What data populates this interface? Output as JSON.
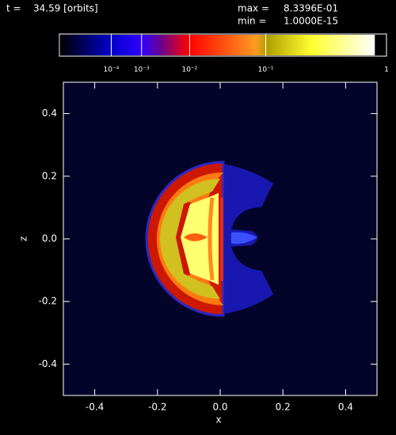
{
  "chart_data": {
    "type": "heatmap",
    "time_label": "t =",
    "time": "34.59 [orbits]",
    "max_label": "max =",
    "max": {
      "value": 0.83396,
      "label": "8.3396E-01"
    },
    "min_label": "min =",
    "min": {
      "value": 1e-15,
      "label": "1.0000E-15"
    },
    "color_scale": "power",
    "color_exponent": 0.2,
    "clim": [
      0,
      1
    ],
    "cticks": [
      {
        "value": 0.0001,
        "label": "10⁻⁴"
      },
      {
        "value": 0.001,
        "label": "10⁻³"
      },
      {
        "value": 0.01,
        "label": "10⁻²"
      },
      {
        "value": 0.1,
        "label": "10⁻¹"
      },
      1
    ],
    "x_label": "x",
    "y_label": "z",
    "xlim": [
      -0.5,
      0.5
    ],
    "ylim": [
      -0.5,
      0.5
    ],
    "xticks": [
      -0.4,
      -0.2,
      {
        "value": 0,
        "label": "0.0"
      },
      0.2,
      0.4
    ],
    "yticks": [
      -0.4,
      -0.2,
      {
        "value": 0,
        "label": "0.0"
      },
      0.2,
      0.4
    ]
  }
}
